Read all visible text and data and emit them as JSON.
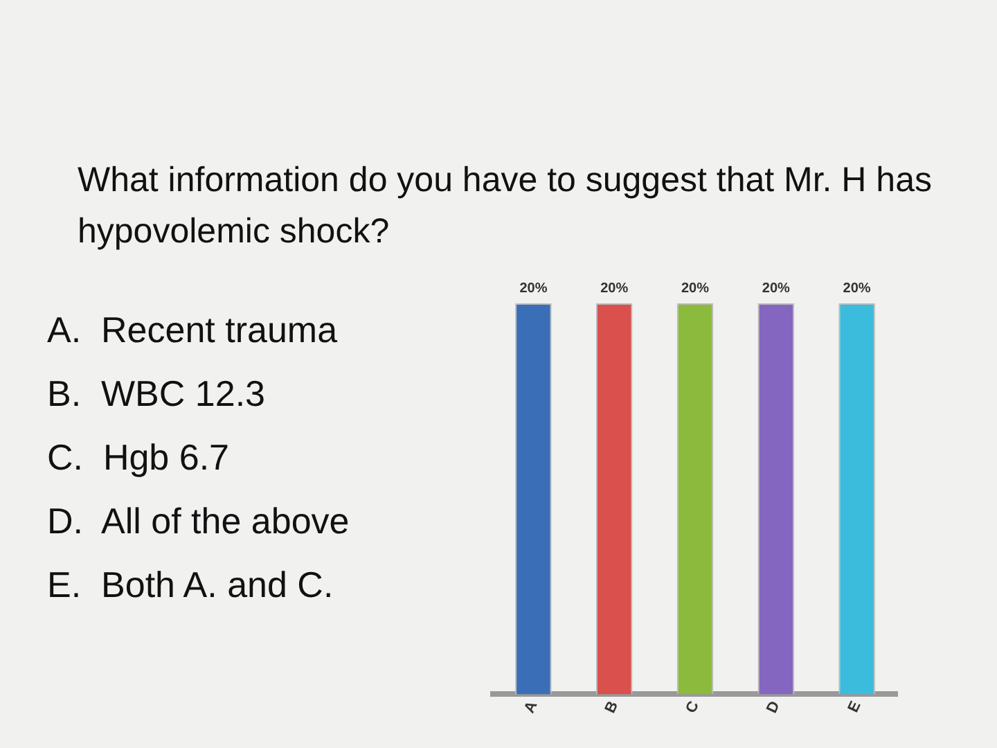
{
  "chart_data": {
    "type": "bar",
    "title": "What information do you have to suggest that Mr. H has hypovolemic shock?",
    "annotations": [
      "A.  Recent trauma",
      "B.  WBC 12.3",
      "C.  Hgb 6.7",
      "D.  All of the above",
      "E.  Both A. and C."
    ],
    "categories": [
      "A",
      "B",
      "C",
      "D",
      "E"
    ],
    "values": [
      20,
      20,
      20,
      20,
      20
    ],
    "colors": [
      "#3a6fb8",
      "#d9504c",
      "#8cba3c",
      "#8466c0",
      "#3cbcdc"
    ],
    "value_labels": [
      "20%",
      "20%",
      "20%",
      "20%",
      "20%"
    ],
    "grid": false,
    "legend": false
  }
}
